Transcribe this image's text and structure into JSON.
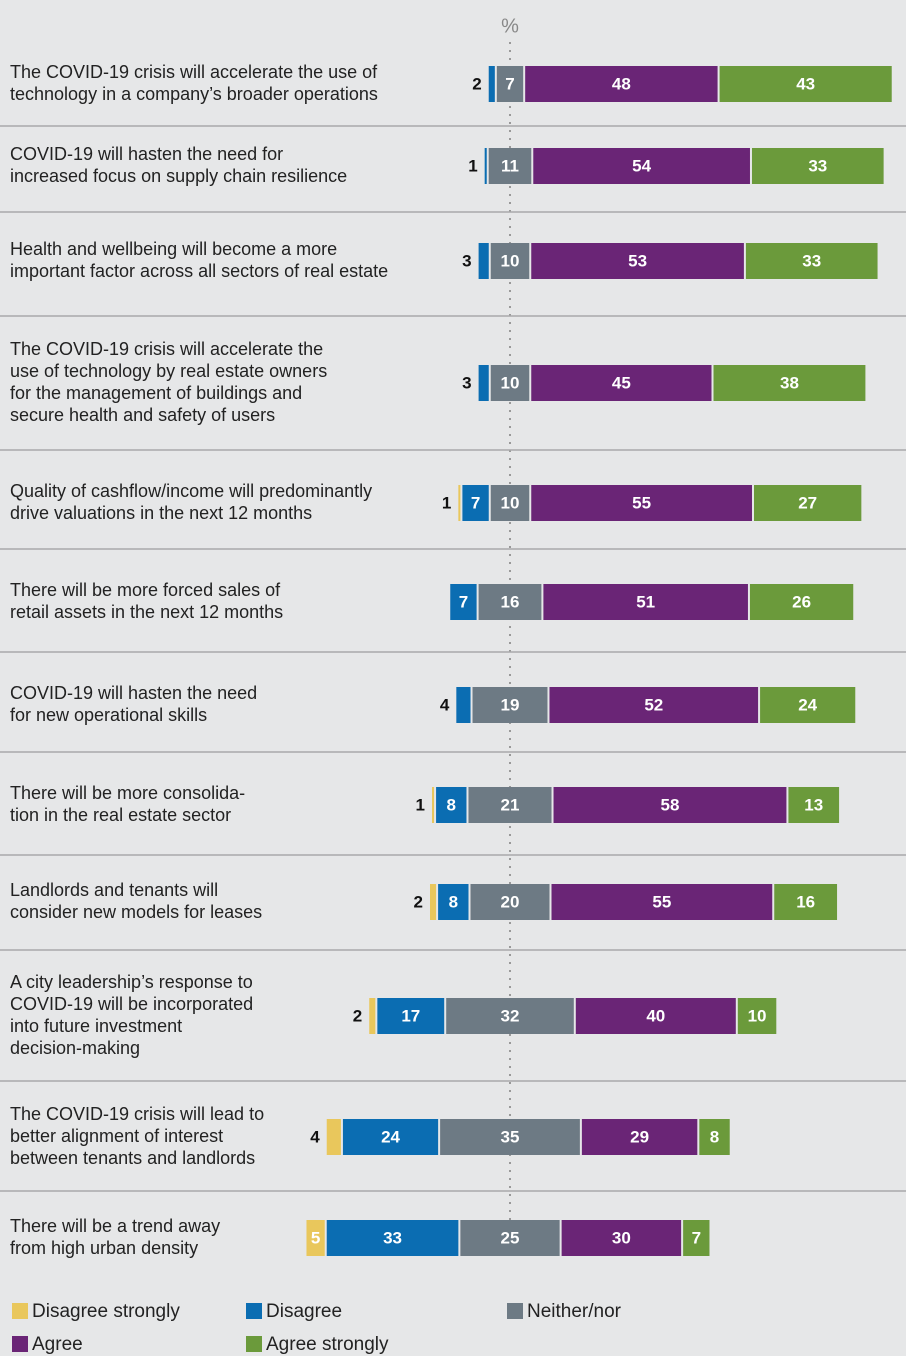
{
  "chart_data": {
    "type": "diverging_bar",
    "unit": "%",
    "categories": [
      [
        "The COVID-19 crisis will accelerate the use of",
        "technology in a company’s broader operations"
      ],
      [
        "COVID-19 will hasten the need for",
        "increased focus on supply chain resilience"
      ],
      [
        "Health and wellbeing will become a more",
        "important factor across all sectors of real estate"
      ],
      [
        "The COVID-19 crisis will accelerate the",
        "use of technology by real estate owners",
        "for the management of buildings and",
        "secure health and safety of users"
      ],
      [
        "Quality of cashflow/income will predominantly",
        "drive valuations in the next 12 months"
      ],
      [
        "There will be more forced sales of",
        "retail assets in the next 12 months"
      ],
      [
        "COVID-19 will hasten the need",
        "for new operational skills"
      ],
      [
        "There will be more consolida-",
        "tion in the real estate sector"
      ],
      [
        "Landlords and tenants will",
        "consider new models for leases"
      ],
      [
        "A city leadership’s response to",
        "COVID-19 will be incorporated",
        "into future investment",
        "decision-making"
      ],
      [
        "The COVID-19 crisis will lead to",
        "better alignment of interest",
        "between tenants and landlords"
      ],
      [
        "There will be a trend away",
        "from high urban density"
      ]
    ],
    "series": [
      {
        "name": "Disagree strongly",
        "color": "#e9c75c",
        "values": [
          null,
          null,
          null,
          null,
          1,
          null,
          null,
          1,
          2,
          2,
          4,
          5
        ]
      },
      {
        "name": "Disagree",
        "color": "#0b6db2",
        "values": [
          2,
          1,
          3,
          3,
          7,
          7,
          4,
          8,
          8,
          17,
          24,
          33
        ]
      },
      {
        "name": "Neither/nor",
        "color": "#6d7a84",
        "values": [
          7,
          11,
          10,
          10,
          10,
          16,
          19,
          21,
          20,
          32,
          35,
          25
        ]
      },
      {
        "name": "Agree",
        "color": "#6a2576",
        "values": [
          48,
          54,
          53,
          45,
          55,
          51,
          52,
          58,
          55,
          40,
          29,
          30
        ]
      },
      {
        "name": "Agree strongly",
        "color": "#6b9a3b",
        "values": [
          43,
          33,
          33,
          38,
          27,
          26,
          24,
          13,
          16,
          10,
          8,
          7
        ]
      }
    ]
  }
}
